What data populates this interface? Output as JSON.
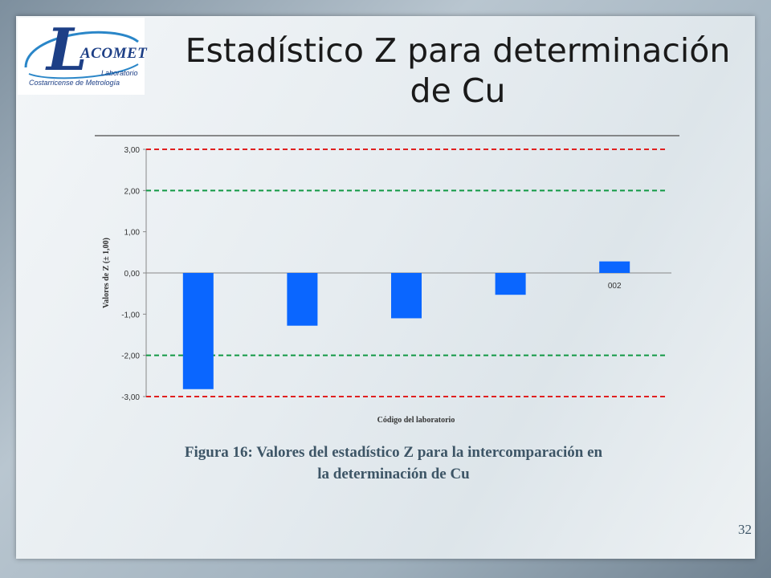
{
  "logo": {
    "letter": "L",
    "name": "ACOMET",
    "sub1": "Laboratorio",
    "sub2": "Costarricense de Metrología"
  },
  "title": "Estadístico Z para determinación de Cu",
  "caption": "Figura 16: Valores del estadístico Z para la intercomparación en la determinación de Cu",
  "page_number": "32",
  "colors": {
    "bar": "#0a66ff",
    "limit3": "#e02020",
    "limit2": "#119944"
  },
  "chart_data": {
    "type": "bar",
    "categories": [
      "",
      "",
      "",
      "",
      "002"
    ],
    "values": [
      -2.82,
      -1.28,
      -1.1,
      -0.53,
      0.28
    ],
    "ylim": [
      -3,
      3
    ],
    "yticks": [
      "3,00",
      "2,00",
      "1,00",
      "0,00",
      "-1,00",
      "-2,00",
      "-3,00"
    ],
    "ytick_values": [
      3,
      2,
      1,
      0,
      -1,
      -2,
      -3
    ],
    "xlabel": "Código del laboratorio",
    "ylabel": "Valores de Z (± 1,00)",
    "reference_lines": [
      3,
      2,
      -2,
      -3
    ],
    "grid": false
  }
}
